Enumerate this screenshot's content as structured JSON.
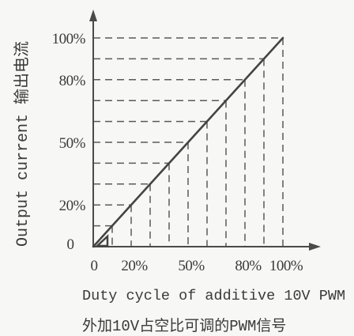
{
  "chart_data": {
    "type": "line",
    "title": "",
    "ylabel": "Output current 输出电流",
    "xlabel": [
      "Duty cycle of additive 10V PWM",
      "外加10V占空比可调的PWM信号"
    ],
    "xlim": [
      0,
      100
    ],
    "ylim": [
      0,
      100
    ],
    "xticks": [
      {
        "value": 0,
        "label": "0"
      },
      {
        "value": 20,
        "label": "20%"
      },
      {
        "value": 50,
        "label": "50%"
      },
      {
        "value": 80,
        "label": "80%"
      },
      {
        "value": 100,
        "label": "100%"
      }
    ],
    "yticks": [
      {
        "value": 0,
        "label": "0"
      },
      {
        "value": 20,
        "label": "20%"
      },
      {
        "value": 50,
        "label": "50%"
      },
      {
        "value": 80,
        "label": "80%"
      },
      {
        "value": 100,
        "label": "100%"
      }
    ],
    "series": [
      {
        "x": [
          0,
          100
        ],
        "y": [
          0,
          100
        ]
      }
    ],
    "grid": true,
    "grid_style": "dashed",
    "grid_step": 10,
    "legend": "none",
    "colors": {
      "line": "#444444",
      "axis": "#4a4a4a",
      "grid": "#5a5a5a",
      "text": "#3a3a3a"
    }
  }
}
